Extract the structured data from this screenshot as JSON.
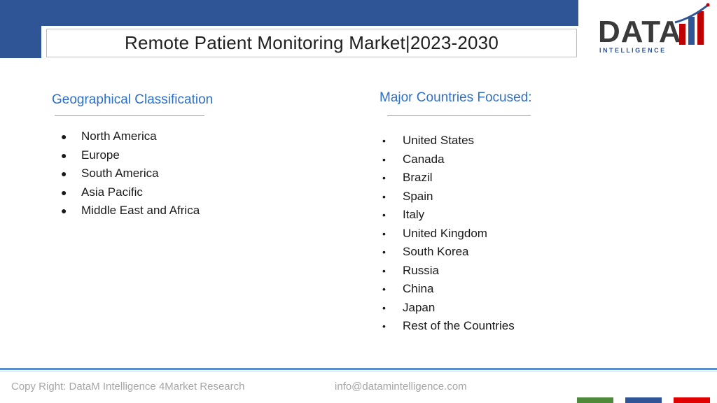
{
  "header": {
    "title": "Remote Patient Monitoring Market|2023-2030",
    "band_color": "#2f5597"
  },
  "logo": {
    "word": "DATA",
    "tagline": "I N T E L L I G E N C E",
    "colors": [
      "#c00000",
      "#2f5597",
      "#3a3a3a"
    ]
  },
  "left_column": {
    "heading": "Geographical Classification",
    "items": [
      "North America",
      "Europe",
      "South America",
      "Asia Pacific",
      "Middle East and Africa"
    ]
  },
  "right_column": {
    "heading": "Major Countries Focused:",
    "items": [
      "United States",
      "Canada",
      "Brazil",
      "Spain",
      "Italy",
      "United Kingdom",
      "South Korea",
      "Russia",
      "China",
      "Japan",
      "Rest of the Countries"
    ]
  },
  "footer": {
    "copyright": "Copy Right: DataM Intelligence 4Market Research",
    "email": "info@datamintelligence.com",
    "swatch_colors": [
      "#4e8a3a",
      "#2f5597",
      "#e00000"
    ]
  }
}
